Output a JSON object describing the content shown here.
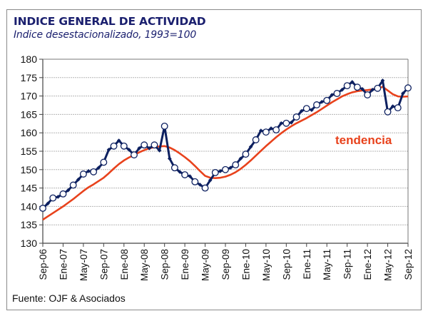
{
  "chart_data": {
    "type": "line",
    "title": "INDICE GENERAL DE ACTIVIDAD",
    "subtitle": "Indice desestacionalizado, 1993=100",
    "source": "Fuente: OJF & Asociados",
    "xlabel": "",
    "ylabel": "",
    "ylim": [
      130,
      180
    ],
    "yticks": [
      130,
      135,
      140,
      145,
      150,
      155,
      160,
      165,
      170,
      175,
      180
    ],
    "xtick_labels": [
      "Sep-06",
      "Ene-07",
      "May-07",
      "Sep-07",
      "Ene-08",
      "May-08",
      "Sep-08",
      "Ene-09",
      "May-09",
      "Sep-09",
      "Ene-10",
      "May-10",
      "Sep-10",
      "Ene-11",
      "May-11",
      "Sep-11",
      "Ene-12",
      "May-12",
      "Sep-12"
    ],
    "x_start": "Sep-06",
    "x_end": "Sep-12",
    "frequency": "monthly",
    "grid": true,
    "annotation": {
      "text": "tendencia",
      "color": "#e8421c"
    },
    "series": [
      {
        "name": "Indice desestacionalizado",
        "color": "#0d2060",
        "marker": "open-circle",
        "values": [
          139.5,
          140.8,
          142.3,
          142.6,
          143.4,
          144.4,
          145.8,
          147.3,
          148.8,
          149.6,
          149.4,
          150.5,
          152.0,
          155.4,
          156.4,
          157.9,
          156.4,
          155.4,
          154.0,
          155.8,
          156.7,
          155.8,
          156.7,
          155.2,
          161.8,
          153.0,
          150.5,
          149.4,
          148.6,
          148.2,
          146.7,
          145.9,
          145.0,
          147.1,
          149.2,
          149.6,
          150.0,
          150.5,
          151.3,
          153.0,
          154.2,
          156.2,
          158.1,
          160.6,
          160.2,
          161.2,
          160.8,
          162.6,
          162.6,
          162.8,
          164.3,
          165.9,
          166.6,
          166.2,
          167.6,
          168.4,
          168.8,
          170.3,
          170.7,
          171.7,
          172.8,
          173.8,
          172.4,
          171.9,
          170.3,
          171.7,
          172.1,
          174.2,
          165.7,
          167.2,
          166.8,
          170.7,
          172.2
        ]
      },
      {
        "name": "tendencia",
        "color": "#e8421c",
        "marker": "none",
        "values": [
          136.4,
          137.3,
          138.2,
          139.1,
          140.0,
          141.0,
          142.0,
          143.1,
          144.2,
          145.2,
          146.0,
          146.9,
          147.8,
          149.0,
          150.3,
          151.5,
          152.5,
          153.3,
          154.0,
          154.7,
          155.3,
          155.8,
          156.1,
          156.3,
          156.4,
          156.0,
          155.3,
          154.4,
          153.4,
          152.3,
          151.0,
          149.6,
          148.3,
          147.8,
          147.7,
          147.8,
          148.1,
          148.6,
          149.3,
          150.2,
          151.3,
          152.5,
          153.8,
          155.1,
          156.4,
          157.6,
          158.8,
          159.9,
          160.9,
          161.8,
          162.6,
          163.3,
          164.0,
          164.8,
          165.6,
          166.5,
          167.4,
          168.3,
          169.1,
          169.9,
          170.5,
          171.0,
          171.3,
          171.5,
          171.6,
          171.8,
          172.1,
          172.5,
          171.5,
          170.5,
          169.9,
          169.8,
          169.9
        ]
      }
    ]
  }
}
